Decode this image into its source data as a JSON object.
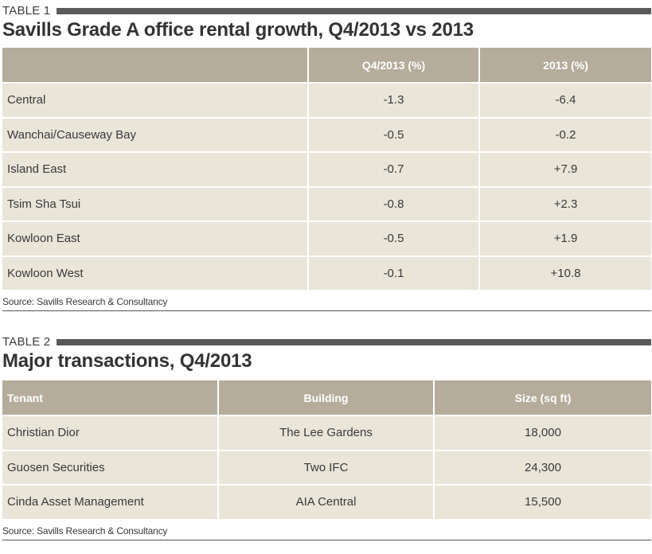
{
  "table1": {
    "label": "TABLE 1",
    "title": "Savills Grade A office rental growth, Q4/2013 vs 2013",
    "headers": [
      "",
      "Q4/2013 (%)",
      "2013 (%)"
    ],
    "rows": [
      [
        "Central",
        "-1.3",
        "-6.4"
      ],
      [
        "Wanchai/Causeway Bay",
        "-0.5",
        "-0.2"
      ],
      [
        "Island East",
        "-0.7",
        "+7.9"
      ],
      [
        "Tsim Sha Tsui",
        "-0.8",
        "+2.3"
      ],
      [
        "Kowloon East",
        "-0.5",
        "+1.9"
      ],
      [
        "Kowloon West",
        "-0.1",
        "+10.8"
      ]
    ],
    "source": "Source: Savills Research & Consultancy"
  },
  "table2": {
    "label": "TABLE 2",
    "title": "Major transactions, Q4/2013",
    "headers": [
      "Tenant",
      "Building",
      "Size (sq ft)"
    ],
    "rows": [
      [
        "Christian Dior",
        "The Lee Gardens",
        "18,000"
      ],
      [
        "Guosen Securities",
        "Two IFC",
        "24,300"
      ],
      [
        "Cinda Asset Management",
        "AIA Central",
        "15,500"
      ]
    ],
    "source": "Source: Savills Research & Consultancy"
  },
  "colors": {
    "header_bg": "#b5ac9b",
    "cell_bg": "#e9e5d9",
    "label_bar": "#5a5a5a"
  }
}
